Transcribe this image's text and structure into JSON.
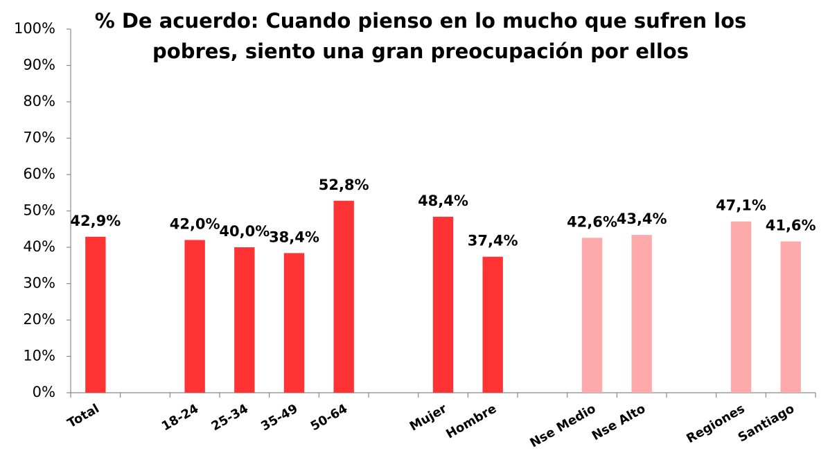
{
  "chart_data": {
    "type": "bar",
    "title": "% De acuerdo: Cuando pienso en lo mucho que sufren los pobres, siento una gran preocupación por ellos",
    "categories": [
      "Total",
      null,
      "18-24",
      "25-34",
      "35-49",
      "50-64",
      null,
      "Mujer",
      "Hombre",
      null,
      "Nse Medio",
      "Nse Alto",
      null,
      "Regiones",
      "Santiago"
    ],
    "values": [
      42.9,
      null,
      42.0,
      40.0,
      38.4,
      52.8,
      null,
      48.4,
      37.4,
      null,
      42.6,
      43.4,
      null,
      47.1,
      41.6
    ],
    "value_labels": [
      "42,9%",
      null,
      "42,0%",
      "40,0%",
      "38,4%",
      "52,8%",
      null,
      "48,4%",
      "37,4%",
      null,
      "42,6%",
      "43,4%",
      null,
      "47,1%",
      "41,6%"
    ],
    "colors": [
      "#ff3333",
      null,
      "#ff3333",
      "#ff3333",
      "#ff3333",
      "#ff3333",
      null,
      "#ff3333",
      "#ff3333",
      null,
      "#ffaaaa",
      "#ffaaaa",
      null,
      "#ffaaaa",
      "#ffaaaa"
    ],
    "ylim": [
      0,
      100
    ],
    "yticks": [
      {
        "value": 0,
        "label": "0%"
      },
      {
        "value": 10,
        "label": "10%"
      },
      {
        "value": 20,
        "label": "20%"
      },
      {
        "value": 30,
        "label": "30%"
      },
      {
        "value": 40,
        "label": "40%"
      },
      {
        "value": 50,
        "label": "50%"
      },
      {
        "value": 60,
        "label": "60%"
      },
      {
        "value": 70,
        "label": "70%"
      },
      {
        "value": 80,
        "label": "80%"
      },
      {
        "value": 90,
        "label": "90%"
      },
      {
        "value": 100,
        "label": "100%"
      }
    ],
    "grid": false
  }
}
